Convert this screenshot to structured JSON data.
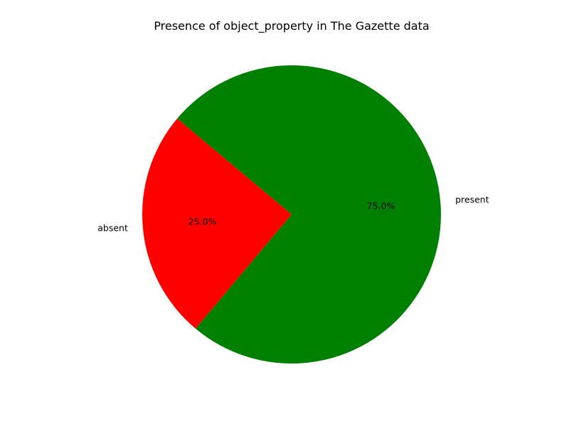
{
  "chart_data": {
    "type": "pie",
    "title": "Presence of object_property in The Gazette data",
    "slices": [
      {
        "label": "absent",
        "value": 25.0,
        "pct_label": "25.0%",
        "color": "#ff0000"
      },
      {
        "label": "present",
        "value": 75.0,
        "pct_label": "75.0%",
        "color": "#008000"
      }
    ],
    "start_angle_deg": 140,
    "direction": "counterclockwise",
    "legend": "none"
  }
}
